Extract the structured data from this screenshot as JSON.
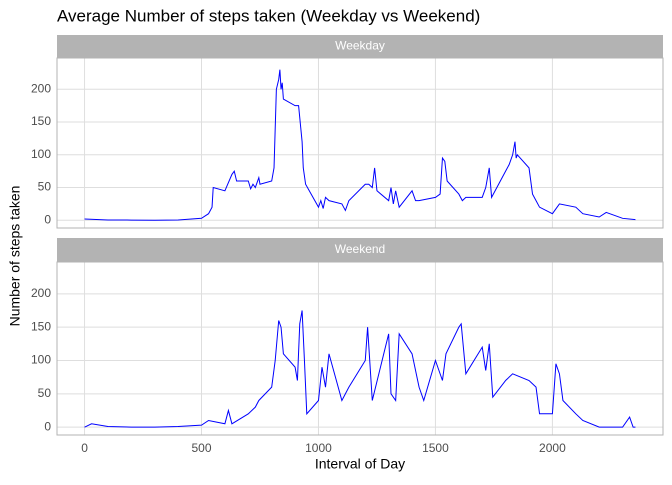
{
  "chart_data": {
    "type": "line",
    "title": "Average Number of steps taken (Weekday vs Weekend)",
    "xlabel": "Interval of Day",
    "ylabel": "Number of steps taken",
    "color": "#0000ff",
    "grid": true,
    "xlim": [
      -117.75,
      2472.75
    ],
    "xticks": [
      0,
      500,
      1000,
      1500,
      2000
    ],
    "ylim": [
      -11.8,
      247.8
    ],
    "yticks": [
      0,
      50,
      100,
      150,
      200
    ],
    "facets": [
      {
        "name": "Weekday",
        "x": [
          0,
          100,
          200,
          300,
          400,
          500,
          530,
          545,
          550,
          600,
          630,
          640,
          650,
          700,
          710,
          720,
          730,
          740,
          745,
          750,
          800,
          810,
          820,
          830,
          835,
          840,
          845,
          850,
          900,
          915,
          930,
          935,
          945,
          1000,
          1010,
          1020,
          1030,
          1045,
          1100,
          1115,
          1130,
          1200,
          1215,
          1230,
          1240,
          1250,
          1300,
          1310,
          1320,
          1330,
          1345,
          1400,
          1415,
          1430,
          1500,
          1520,
          1530,
          1540,
          1550,
          1600,
          1615,
          1630,
          1700,
          1715,
          1730,
          1740,
          1800,
          1815,
          1830,
          1840,
          1845,
          1850,
          1900,
          1915,
          1930,
          1945,
          2000,
          2030,
          2100,
          2130,
          2200,
          2230,
          2300,
          2355
        ],
        "values": [
          2,
          0.5,
          0.3,
          0,
          0.5,
          3,
          10,
          20,
          50,
          45,
          70,
          75,
          60,
          60,
          48,
          55,
          50,
          60,
          65,
          55,
          60,
          80,
          200,
          215,
          230,
          200,
          210,
          185,
          175,
          175,
          120,
          80,
          55,
          20,
          30,
          18,
          35,
          30,
          25,
          15,
          30,
          55,
          55,
          50,
          80,
          45,
          30,
          50,
          25,
          45,
          20,
          45,
          30,
          30,
          35,
          40,
          95,
          90,
          60,
          40,
          30,
          35,
          35,
          50,
          80,
          35,
          75,
          85,
          100,
          120,
          95,
          100,
          80,
          40,
          30,
          20,
          10,
          25,
          20,
          10,
          5,
          12,
          3,
          1
        ]
      },
      {
        "name": "Weekend",
        "x": [
          0,
          30,
          100,
          200,
          300,
          400,
          500,
          530,
          600,
          615,
          630,
          700,
          730,
          745,
          800,
          815,
          830,
          840,
          850,
          900,
          910,
          920,
          930,
          940,
          950,
          1000,
          1015,
          1030,
          1045,
          1100,
          1130,
          1200,
          1210,
          1220,
          1230,
          1300,
          1310,
          1330,
          1345,
          1400,
          1430,
          1450,
          1500,
          1530,
          1545,
          1600,
          1610,
          1630,
          1700,
          1715,
          1730,
          1745,
          1800,
          1830,
          1900,
          1930,
          1945,
          2000,
          2015,
          2030,
          2045,
          2100,
          2130,
          2200,
          2300,
          2330,
          2345,
          2355
        ],
        "values": [
          0,
          5,
          1,
          0,
          0,
          1,
          3,
          10,
          5,
          25,
          5,
          20,
          30,
          40,
          60,
          100,
          160,
          150,
          110,
          90,
          70,
          155,
          175,
          100,
          20,
          40,
          90,
          60,
          110,
          40,
          60,
          100,
          150,
          95,
          40,
          140,
          50,
          40,
          140,
          110,
          60,
          40,
          100,
          70,
          110,
          150,
          155,
          80,
          120,
          85,
          125,
          45,
          70,
          80,
          70,
          60,
          20,
          20,
          95,
          80,
          40,
          20,
          10,
          0,
          0,
          15,
          0,
          0
        ]
      }
    ]
  }
}
